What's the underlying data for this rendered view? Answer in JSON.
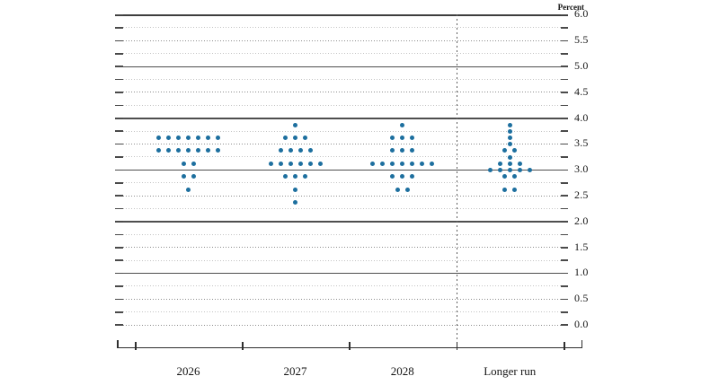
{
  "percent_label": "Percent",
  "chart_data": {
    "type": "scatter",
    "subtype": "fomc-dot-plot",
    "title": "",
    "ylabel": "Percent",
    "ylim": [
      0.0,
      6.0
    ],
    "gridline_step": 0.25,
    "label_step": 0.5,
    "grid": "on",
    "dot_color": "#1d6f9f",
    "y_tick_labels": [
      "0.0",
      "0.5",
      "1.0",
      "1.5",
      "2.0",
      "2.5",
      "3.0",
      "3.5",
      "4.0",
      "4.5",
      "5.0",
      "5.5",
      "6.0"
    ],
    "columns": [
      {
        "label": "2026",
        "dots": [
          {
            "v": 3.625,
            "n": 7
          },
          {
            "v": 3.375,
            "n": 7
          },
          {
            "v": 3.125,
            "n": 2
          },
          {
            "v": 2.875,
            "n": 2
          },
          {
            "v": 2.625,
            "n": 1
          }
        ]
      },
      {
        "label": "2027",
        "dots": [
          {
            "v": 3.875,
            "n": 1
          },
          {
            "v": 3.625,
            "n": 3
          },
          {
            "v": 3.375,
            "n": 4
          },
          {
            "v": 3.125,
            "n": 6
          },
          {
            "v": 2.875,
            "n": 3
          },
          {
            "v": 2.625,
            "n": 1
          },
          {
            "v": 2.375,
            "n": 1
          }
        ]
      },
      {
        "label": "2028",
        "dots": [
          {
            "v": 3.875,
            "n": 1
          },
          {
            "v": 3.625,
            "n": 3
          },
          {
            "v": 3.375,
            "n": 3
          },
          {
            "v": 3.125,
            "n": 7
          },
          {
            "v": 2.875,
            "n": 3
          },
          {
            "v": 2.625,
            "n": 2
          }
        ]
      },
      {
        "label": "Longer run",
        "dots": [
          {
            "v": 3.875,
            "n": 1
          },
          {
            "v": 3.75,
            "n": 1
          },
          {
            "v": 3.625,
            "n": 1
          },
          {
            "v": 3.5,
            "n": 1
          },
          {
            "v": 3.375,
            "n": 2
          },
          {
            "v": 3.25,
            "n": 1
          },
          {
            "v": 3.125,
            "n": 3
          },
          {
            "v": 3.0,
            "n": 5
          },
          {
            "v": 2.875,
            "n": 2
          },
          {
            "v": 2.625,
            "n": 2
          }
        ]
      }
    ],
    "separator_after_column": "2028"
  }
}
